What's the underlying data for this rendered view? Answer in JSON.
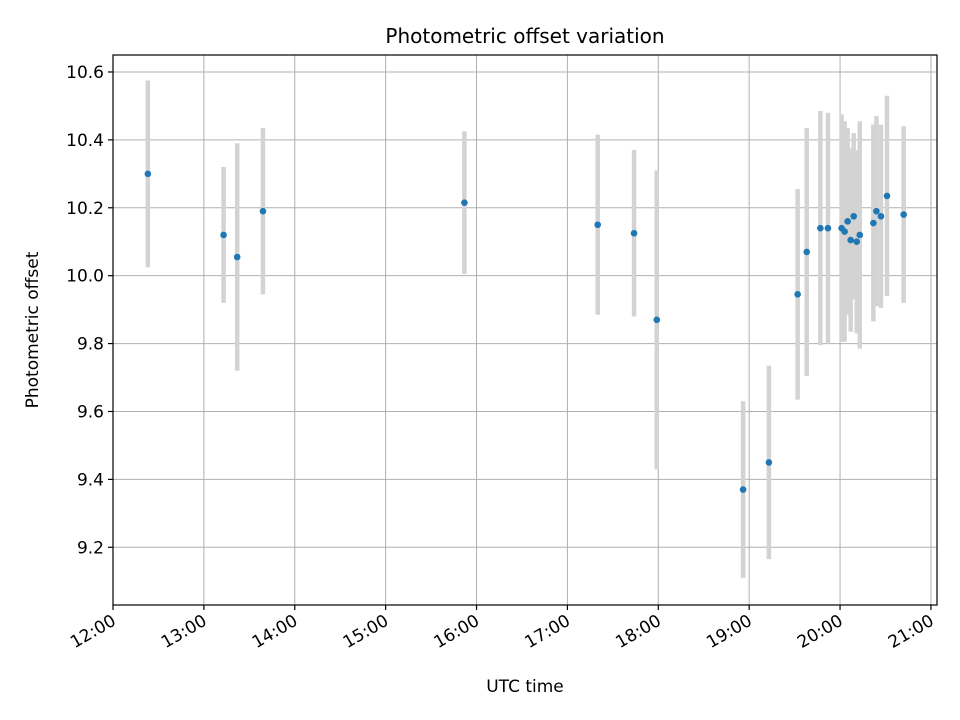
{
  "chart_data": {
    "type": "scatter",
    "title": "Photometric offset variation",
    "xlabel": "UTC time",
    "ylabel": "Photometric offset",
    "grid": true,
    "xlim": [
      "12:00",
      "21:04"
    ],
    "ylim": [
      9.03,
      10.65
    ],
    "x_ticks": [
      "12:00",
      "13:00",
      "14:00",
      "15:00",
      "16:00",
      "17:00",
      "18:00",
      "19:00",
      "20:00",
      "21:00"
    ],
    "y_ticks": [
      "9.2",
      "9.4",
      "9.6",
      "9.8",
      "10.0",
      "10.2",
      "10.4",
      "10.6"
    ],
    "marker_color": "#1f77b4",
    "errorbar_color": "#d3d3d3",
    "points": [
      {
        "time": "12:23",
        "value": 10.3,
        "err": 0.275
      },
      {
        "time": "13:13",
        "value": 10.12,
        "err": 0.2
      },
      {
        "time": "13:22",
        "value": 10.055,
        "err": 0.335
      },
      {
        "time": "13:39",
        "value": 10.19,
        "err": 0.245
      },
      {
        "time": "15:52",
        "value": 10.215,
        "err": 0.21
      },
      {
        "time": "17:20",
        "value": 10.15,
        "err": 0.265
      },
      {
        "time": "17:44",
        "value": 10.125,
        "err": 0.245
      },
      {
        "time": "17:59",
        "value": 9.87,
        "err": 0.44
      },
      {
        "time": "18:56",
        "value": 9.37,
        "err": 0.26
      },
      {
        "time": "19:13",
        "value": 9.45,
        "err": 0.285
      },
      {
        "time": "19:32",
        "value": 9.945,
        "err": 0.31
      },
      {
        "time": "19:38",
        "value": 10.07,
        "err": 0.365
      },
      {
        "time": "19:47",
        "value": 10.14,
        "err": 0.345
      },
      {
        "time": "19:52",
        "value": 10.14,
        "err": 0.34
      },
      {
        "time": "20:01",
        "value": 10.14,
        "err": 0.335
      },
      {
        "time": "20:03",
        "value": 10.13,
        "err": 0.325
      },
      {
        "time": "20:05",
        "value": 10.16,
        "err": 0.275
      },
      {
        "time": "20:07",
        "value": 10.105,
        "err": 0.27
      },
      {
        "time": "20:09",
        "value": 10.175,
        "err": 0.245
      },
      {
        "time": "20:11",
        "value": 10.1,
        "err": 0.27
      },
      {
        "time": "20:13",
        "value": 10.12,
        "err": 0.335
      },
      {
        "time": "20:22",
        "value": 10.155,
        "err": 0.29
      },
      {
        "time": "20:24",
        "value": 10.19,
        "err": 0.28
      },
      {
        "time": "20:27",
        "value": 10.175,
        "err": 0.27
      },
      {
        "time": "20:31",
        "value": 10.235,
        "err": 0.295
      },
      {
        "time": "20:42",
        "value": 10.18,
        "err": 0.26
      }
    ]
  }
}
